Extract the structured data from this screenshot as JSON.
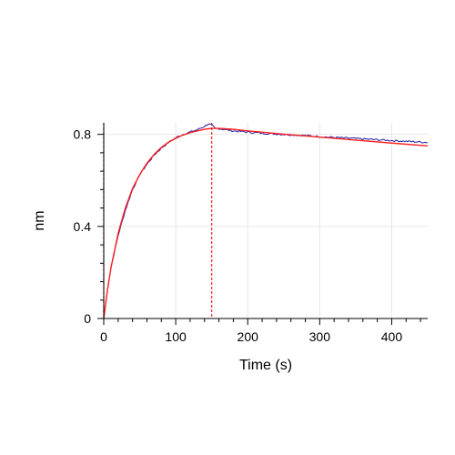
{
  "chart_data": {
    "type": "line",
    "title": "",
    "xlabel": "Time (s)",
    "ylabel": "nm",
    "xlim": [
      0,
      450
    ],
    "ylim": [
      0,
      0.85
    ],
    "xticks": [
      0,
      100,
      200,
      300,
      400
    ],
    "xtick_labels": [
      "0",
      "100",
      "200",
      "300",
      "400"
    ],
    "yticks": [
      0,
      0.4,
      0.8
    ],
    "ytick_labels": [
      "0",
      "0.4",
      "0.8"
    ],
    "grid": true,
    "legend": "none",
    "vlines": [
      {
        "x": 0,
        "color": "#cc0000",
        "style": "dashed"
      },
      {
        "x": 150,
        "color": "#ff2020",
        "style": "dashed"
      }
    ],
    "series": [
      {
        "color": "#2020a0",
        "style": "noisy",
        "x": [
          0,
          5,
          10,
          20,
          30,
          40,
          50,
          60,
          70,
          80,
          90,
          100,
          110,
          120,
          130,
          140,
          145,
          150,
          155,
          160,
          170,
          180,
          200,
          220,
          250,
          280,
          300,
          330,
          360,
          390,
          420,
          450
        ],
        "y": [
          0.0,
          0.12,
          0.22,
          0.36,
          0.47,
          0.56,
          0.625,
          0.67,
          0.71,
          0.74,
          0.765,
          0.785,
          0.8,
          0.81,
          0.82,
          0.835,
          0.845,
          0.84,
          0.825,
          0.825,
          0.82,
          0.815,
          0.81,
          0.805,
          0.8,
          0.795,
          0.79,
          0.785,
          0.78,
          0.775,
          0.77,
          0.765
        ]
      },
      {
        "color": "#ff2020",
        "style": "smooth",
        "x": [
          0,
          5,
          10,
          20,
          30,
          40,
          50,
          60,
          70,
          80,
          90,
          100,
          110,
          120,
          130,
          140,
          150,
          160,
          180,
          200,
          250,
          300,
          350,
          400,
          450
        ],
        "y": [
          0.0,
          0.12,
          0.22,
          0.37,
          0.48,
          0.565,
          0.625,
          0.675,
          0.713,
          0.743,
          0.766,
          0.783,
          0.797,
          0.807,
          0.815,
          0.822,
          0.826,
          0.826,
          0.822,
          0.815,
          0.801,
          0.788,
          0.775,
          0.762,
          0.75
        ]
      }
    ]
  }
}
